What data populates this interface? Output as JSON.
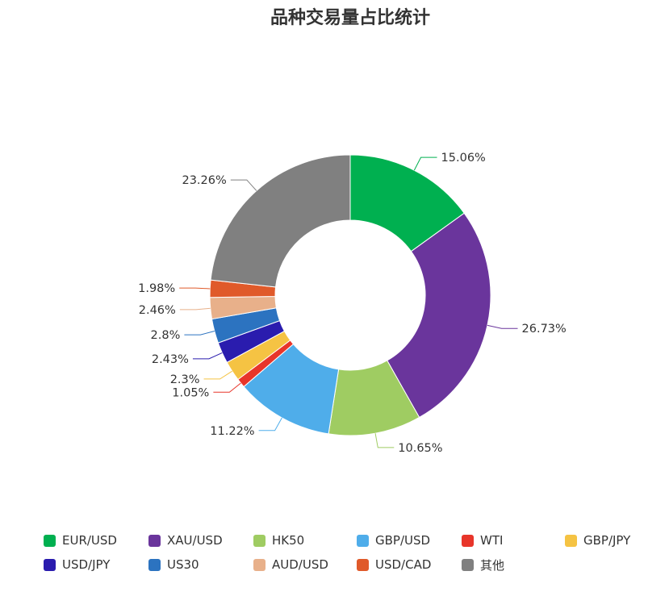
{
  "chart_data": {
    "type": "pie",
    "variant": "donut",
    "title": "品种交易量占比统计",
    "legend_placement": "bottom",
    "slices": [
      {
        "name": "EUR/USD",
        "value": 15.06,
        "label": "15.06%",
        "color": "#00b050"
      },
      {
        "name": "XAU/USD",
        "value": 26.73,
        "label": "26.73%",
        "color": "#6a359c"
      },
      {
        "name": "HK50",
        "value": 10.65,
        "label": "10.65%",
        "color": "#9fcc62"
      },
      {
        "name": "GBP/USD",
        "value": 11.22,
        "label": "11.22%",
        "color": "#4fadea"
      },
      {
        "name": "WTI",
        "value": 1.05,
        "label": "1.05%",
        "color": "#e8352a"
      },
      {
        "name": "GBP/JPY",
        "value": 2.3,
        "label": "2.3%",
        "color": "#f5c343"
      },
      {
        "name": "USD/JPY",
        "value": 2.43,
        "label": "2.43%",
        "color": "#2a1cae"
      },
      {
        "name": "US30",
        "value": 2.8,
        "label": "2.8%",
        "color": "#2c73c0"
      },
      {
        "name": "AUD/USD",
        "value": 2.46,
        "label": "2.46%",
        "color": "#e8b08a"
      },
      {
        "name": "USD/CAD",
        "value": 1.98,
        "label": "1.98%",
        "color": "#e05a2a"
      },
      {
        "name": "其他",
        "value": 23.26,
        "label": "23.26%",
        "color": "#808080"
      }
    ]
  }
}
